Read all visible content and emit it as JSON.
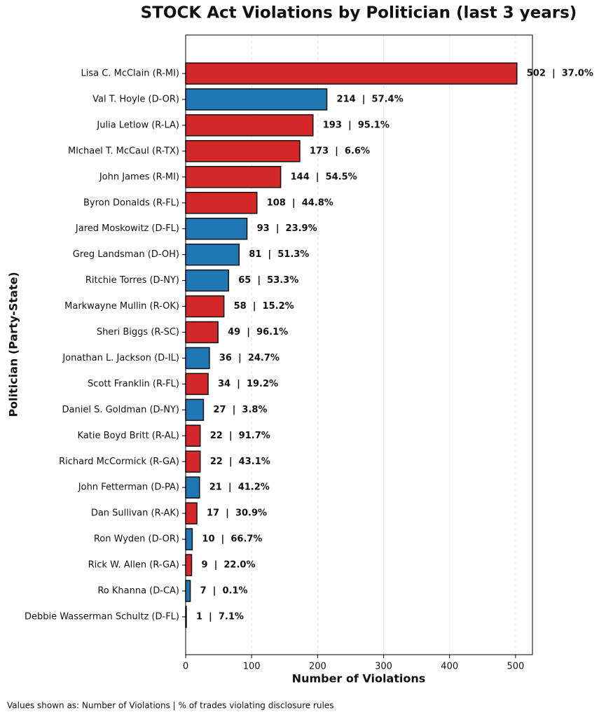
{
  "chart_data": {
    "type": "barh",
    "title": "STOCK Act Violations by Politician (last 3 years)",
    "xlabel": "Number of Violations",
    "ylabel": "Politician (Party-State)",
    "footnote": "Values shown as: Number of Violations  |  % of trades violating disclosure rules",
    "categories": [
      "Lisa C. McClain (R-MI)",
      "Val T. Hoyle (D-OR)",
      "Julia Letlow (R-LA)",
      "Michael T. McCaul (R-TX)",
      "John James (R-MI)",
      "Byron Donalds (R-FL)",
      "Jared Moskowitz (D-FL)",
      "Greg Landsman (D-OH)",
      "Ritchie Torres (D-NY)",
      "Markwayne Mullin (R-OK)",
      "Sheri Biggs (R-SC)",
      "Jonathan L. Jackson (D-IL)",
      "Scott Franklin (R-FL)",
      "Daniel S. Goldman (D-NY)",
      "Katie Boyd Britt (R-AL)",
      "Richard McCormick (R-GA)",
      "John Fetterman (D-PA)",
      "Dan Sullivan (R-AK)",
      "Ron Wyden (D-OR)",
      "Rick W. Allen (R-GA)",
      "Ro Khanna (D-CA)",
      "Debbie Wasserman Schultz (D-FL)"
    ],
    "values": [
      502,
      214,
      193,
      173,
      144,
      108,
      93,
      81,
      65,
      58,
      49,
      36,
      34,
      27,
      22,
      22,
      21,
      17,
      10,
      9,
      7,
      1
    ],
    "value_labels": [
      "502  |  37.0%",
      "214  |  57.4%",
      "193  |  95.1%",
      "173  |  6.6%",
      "144  |  54.5%",
      "108  |  44.8%",
      "93  |  23.9%",
      "81  |  51.3%",
      "65  |  53.3%",
      "58  |  15.2%",
      "49  |  96.1%",
      "36  |  24.7%",
      "34  |  19.2%",
      "27  |  3.8%",
      "22  |  91.7%",
      "22  |  43.1%",
      "21  |  41.2%",
      "17  |  30.9%",
      "10  |  66.7%",
      "9  |  22.0%",
      "7  |  0.1%",
      "1  |  7.1%"
    ],
    "colors": [
      "#d62728",
      "#1f77b4",
      "#d62728",
      "#d62728",
      "#d62728",
      "#d62728",
      "#1f77b4",
      "#1f77b4",
      "#1f77b4",
      "#d62728",
      "#d62728",
      "#1f77b4",
      "#d62728",
      "#1f77b4",
      "#d62728",
      "#d62728",
      "#1f77b4",
      "#d62728",
      "#1f77b4",
      "#d62728",
      "#1f77b4",
      "#1f77b4"
    ],
    "xlim": [
      0,
      525.6
    ],
    "xticks": [
      0,
      100,
      200,
      300,
      400,
      500
    ],
    "grid": true
  }
}
